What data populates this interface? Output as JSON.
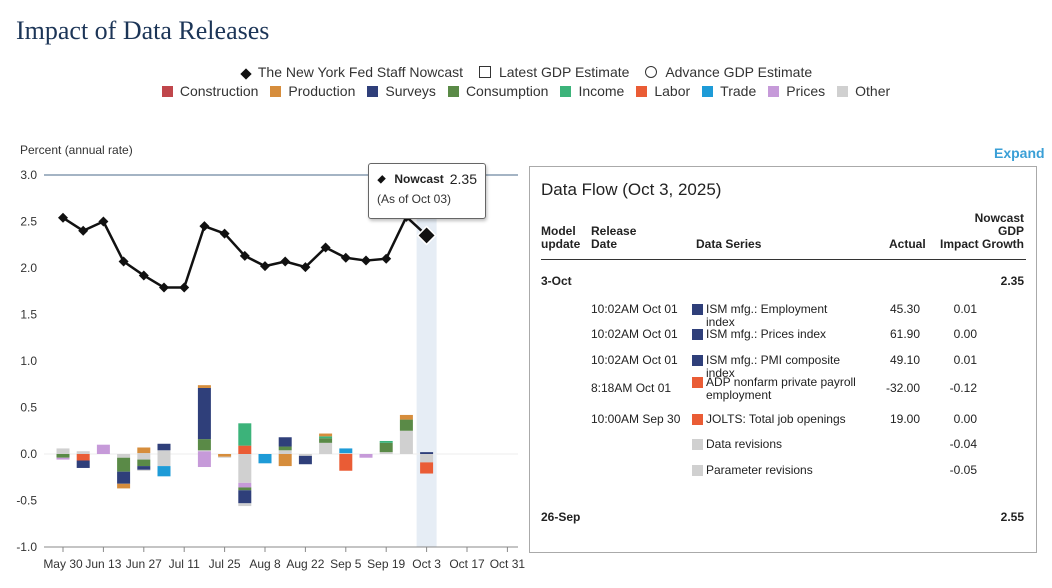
{
  "page": {
    "title": "Impact of Data Releases"
  },
  "legend": {
    "row1": [
      {
        "label": "The New York Fed Staff Nowcast",
        "marker": "diamond"
      },
      {
        "label": "Latest GDP Estimate",
        "marker": "square"
      },
      {
        "label": "Advance GDP Estimate",
        "marker": "circle"
      }
    ],
    "row2": [
      {
        "label": "Construction",
        "color": "#c0464b"
      },
      {
        "label": "Production",
        "color": "#d68d3c"
      },
      {
        "label": "Surveys",
        "color": "#2f3f7a"
      },
      {
        "label": "Consumption",
        "color": "#5a8a47"
      },
      {
        "label": "Income",
        "color": "#3cb37a"
      },
      {
        "label": "Labor",
        "color": "#ea5c35"
      },
      {
        "label": "Trade",
        "color": "#1e9bd7"
      },
      {
        "label": "Prices",
        "color": "#c69ad9"
      },
      {
        "label": "Other",
        "color": "#d0d0d0"
      }
    ]
  },
  "chart_data": {
    "type": "line+stacked-bar",
    "ylabel": "Percent (annual rate)",
    "ylim": [
      -1.0,
      3.0
    ],
    "yticks": [
      "3.0",
      "2.5",
      "2.0",
      "1.5",
      "1.0",
      "0.5",
      "0.0",
      "-0.5",
      "-1.0"
    ],
    "x_labels": [
      "May 30",
      "Jun 13",
      "Jun 27",
      "Jul 11",
      "Jul 25",
      "Aug 8",
      "Aug 22",
      "Sep 5",
      "Sep 19",
      "Oct 3",
      "Oct 17",
      "Oct 31"
    ],
    "x_label_index": [
      0,
      2,
      4,
      6,
      8,
      10,
      12,
      14,
      16,
      18,
      20,
      22
    ],
    "highlight_index": 18,
    "nowcast": {
      "name": "Nowcast",
      "x_index": [
        0,
        1,
        2,
        3,
        4,
        5,
        6,
        7,
        8,
        9,
        10,
        11,
        12,
        13,
        14,
        15,
        16,
        17,
        18
      ],
      "values": [
        2.54,
        2.4,
        2.5,
        2.07,
        1.92,
        1.79,
        1.79,
        2.45,
        2.37,
        2.13,
        2.02,
        2.07,
        2.01,
        2.22,
        2.11,
        2.08,
        2.1,
        2.55,
        2.35
      ]
    },
    "bars": [
      {
        "x": 0,
        "segs": [
          [
            "Other",
            0.06
          ],
          [
            "Consumption",
            -0.04
          ],
          [
            "Surveys",
            0.0
          ],
          [
            "Prices",
            -0.02
          ]
        ]
      },
      {
        "x": 1,
        "segs": [
          [
            "Other",
            0.03
          ],
          [
            "Labor",
            -0.07
          ],
          [
            "Surveys",
            -0.08
          ]
        ]
      },
      {
        "x": 2,
        "segs": [
          [
            "Prices",
            0.1
          ]
        ]
      },
      {
        "x": 3,
        "segs": [
          [
            "Other",
            -0.04
          ],
          [
            "Consumption",
            -0.15
          ],
          [
            "Surveys",
            -0.13
          ],
          [
            "Production",
            -0.05
          ]
        ]
      },
      {
        "x": 4,
        "segs": [
          [
            "Other",
            0.01
          ],
          [
            "Production",
            0.06
          ],
          [
            "Other",
            -0.06
          ],
          [
            "Consumption",
            -0.07
          ],
          [
            "Surveys",
            -0.04
          ],
          [
            "Other",
            -0.01
          ]
        ]
      },
      {
        "x": 5,
        "segs": [
          [
            "Other",
            0.04
          ],
          [
            "Surveys",
            0.07
          ],
          [
            "Other",
            -0.13
          ],
          [
            "Trade",
            -0.11
          ]
        ]
      },
      {
        "x": 6,
        "segs": []
      },
      {
        "x": 7,
        "segs": [
          [
            "Prices",
            0.03
          ],
          [
            "Other",
            0.01
          ],
          [
            "Consumption",
            0.12
          ],
          [
            "Surveys",
            0.55
          ],
          [
            "Production",
            0.03
          ],
          [
            "Prices",
            -0.14
          ]
        ]
      },
      {
        "x": 8,
        "segs": [
          [
            "Production",
            -0.03
          ],
          [
            "Other",
            -0.01
          ]
        ]
      },
      {
        "x": 9,
        "segs": [
          [
            "Labor",
            0.09
          ],
          [
            "Income",
            0.24
          ],
          [
            "Other",
            -0.31
          ],
          [
            "Prices",
            -0.05
          ],
          [
            "Consumption",
            -0.03
          ],
          [
            "Surveys",
            -0.14
          ],
          [
            "Other",
            -0.03
          ]
        ]
      },
      {
        "x": 10,
        "segs": [
          [
            "Trade",
            -0.1
          ]
        ]
      },
      {
        "x": 11,
        "segs": [
          [
            "Other",
            0.04
          ],
          [
            "Consumption",
            0.04
          ],
          [
            "Surveys",
            0.1
          ],
          [
            "Production",
            -0.13
          ]
        ]
      },
      {
        "x": 12,
        "segs": [
          [
            "Other",
            -0.02
          ],
          [
            "Surveys",
            -0.09
          ]
        ]
      },
      {
        "x": 13,
        "segs": [
          [
            "Other",
            0.12
          ],
          [
            "Consumption",
            0.05
          ],
          [
            "Income",
            0.02
          ],
          [
            "Production",
            0.03
          ]
        ]
      },
      {
        "x": 14,
        "segs": [
          [
            "Other",
            0.01
          ],
          [
            "Trade",
            0.05
          ],
          [
            "Labor",
            -0.18
          ]
        ]
      },
      {
        "x": 15,
        "segs": [
          [
            "Prices",
            -0.04
          ]
        ]
      },
      {
        "x": 16,
        "segs": [
          [
            "Other",
            0.02
          ],
          [
            "Consumption",
            0.1
          ],
          [
            "Income",
            0.02
          ]
        ]
      },
      {
        "x": 17,
        "segs": [
          [
            "Other",
            0.25
          ],
          [
            "Consumption",
            0.12
          ],
          [
            "Production",
            0.05
          ]
        ]
      },
      {
        "x": 18,
        "segs": [
          [
            "Surveys",
            0.02
          ],
          [
            "Other",
            -0.09
          ],
          [
            "Labor",
            -0.12
          ]
        ]
      }
    ]
  },
  "tooltip": {
    "label": "Nowcast",
    "value": "2.35",
    "subtitle": "(As of Oct 03)"
  },
  "expand_label": "Expand",
  "panel": {
    "title": "Data Flow (Oct 3, 2025)",
    "headers": {
      "model_update": "Model update",
      "release_date": "Release Date",
      "data_series": "Data Series",
      "actual": "Actual",
      "impact": "Impact",
      "nowcast": "Nowcast GDP Growth"
    },
    "groups": [
      {
        "date": "3-Oct",
        "total": "2.35",
        "rows": [
          {
            "release": "10:02AM Oct 01",
            "series": "ISM mfg.: Employment index",
            "color": "#2f3f7a",
            "actual": "45.30",
            "impact": "0.01",
            "sign": "pos"
          },
          {
            "release": "10:02AM Oct 01",
            "series": "ISM mfg.: Prices index",
            "color": "#2f3f7a",
            "actual": "61.90",
            "impact": "0.00",
            "sign": "zero"
          },
          {
            "release": "10:02AM Oct 01",
            "series": "ISM mfg.: PMI composite index",
            "color": "#2f3f7a",
            "actual": "49.10",
            "impact": "0.01",
            "sign": "pos"
          },
          {
            "release": "8:18AM Oct 01",
            "series": "ADP nonfarm private payroll employment",
            "color": "#ea5c35",
            "actual": "-32.00",
            "impact": "-0.12",
            "sign": "neg"
          },
          {
            "release": "10:00AM Sep 30",
            "series": "JOLTS: Total job openings",
            "color": "#ea5c35",
            "actual": "19.00",
            "impact": "0.00",
            "sign": "zero"
          },
          {
            "release": "",
            "series": "Data revisions",
            "color": "#d0d0d0",
            "actual": "",
            "impact": "-0.04",
            "sign": "neg"
          },
          {
            "release": "",
            "series": "Parameter revisions",
            "color": "#d0d0d0",
            "actual": "",
            "impact": "-0.05",
            "sign": "neg"
          }
        ]
      },
      {
        "date": "26-Sep",
        "total": "2.55",
        "rows": []
      }
    ]
  }
}
